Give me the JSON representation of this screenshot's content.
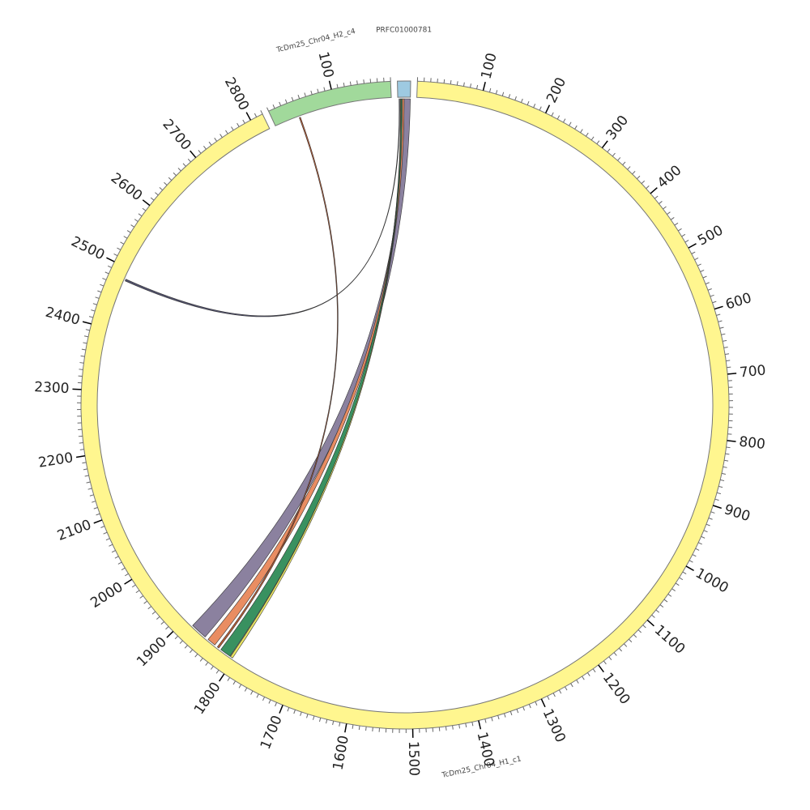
{
  "chart_data": {
    "type": "chord",
    "segments": [
      {
        "name": "TcDm25_Chr04_H1_c1",
        "length": 2820,
        "color": "#fff68f",
        "ticks": [
          100,
          200,
          300,
          400,
          500,
          600,
          700,
          800,
          900,
          1000,
          1100,
          1200,
          1300,
          1400,
          1500,
          1600,
          1700,
          1800,
          1900,
          2000,
          2100,
          2200,
          2300,
          2400,
          2500,
          2600,
          2700,
          2800
        ],
        "minor_tick_step": 10
      },
      {
        "name": "TcDm25_Chr04_H2_c4",
        "length": 190,
        "color": "#a1d99b",
        "ticks": [
          100
        ],
        "minor_tick_step": 10
      },
      {
        "name": "PRFC01000781",
        "length": 20,
        "color": "#9ecae1"
      }
    ],
    "links": [
      {
        "source": "PRFC01000781",
        "source_start": 10,
        "source_end": 20,
        "target": "TcDm25_Chr04_H1_c1",
        "target_start": 1858,
        "target_end": 1885,
        "color": "#857a9a"
      },
      {
        "source": "PRFC01000781",
        "source_start": 7,
        "source_end": 10,
        "target": "TcDm25_Chr04_H1_c1",
        "target_start": 1838,
        "target_end": 1852,
        "color": "#e8875a"
      },
      {
        "source": "PRFC01000781",
        "source_start": 5,
        "source_end": 7,
        "target": "TcDm25_Chr04_H1_c1",
        "target_start": 1808,
        "target_end": 1826,
        "color": "#2e8b57"
      },
      {
        "source": "PRFC01000781",
        "source_start": 4,
        "source_end": 5,
        "target": "TcDm25_Chr04_H1_c1",
        "target_start": 1803,
        "target_end": 1807,
        "color": "#e8e35a"
      },
      {
        "source": "PRFC01000781",
        "source_start": 2,
        "source_end": 3,
        "target": "TcDm25_Chr04_H1_c1",
        "target_start": 2480,
        "target_end": 2483,
        "color": "#4a4a6a"
      },
      {
        "source": "TcDm25_Chr04_H2_c4",
        "source_start": 40,
        "source_end": 42,
        "target": "TcDm25_Chr04_H1_c1",
        "target_start": 1830,
        "target_end": 1833,
        "color": "#b5532a"
      }
    ]
  }
}
